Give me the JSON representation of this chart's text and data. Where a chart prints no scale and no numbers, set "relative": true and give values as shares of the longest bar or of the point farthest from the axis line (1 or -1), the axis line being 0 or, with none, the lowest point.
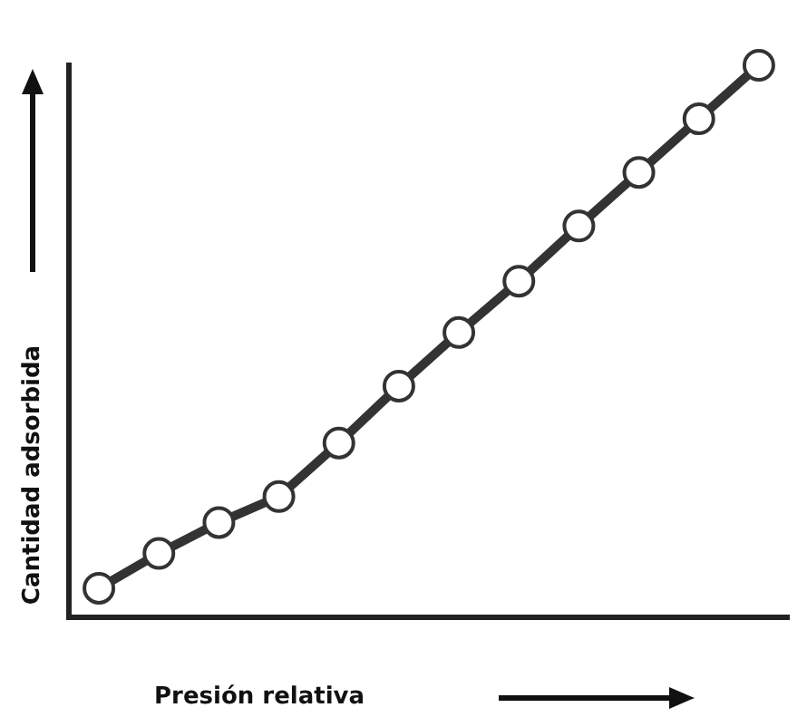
{
  "chart_data": {
    "type": "line",
    "xlabel": "Presión relativa",
    "ylabel": "Cantidad adsorbida",
    "relative": true,
    "categories": [
      null,
      null,
      null,
      null,
      null,
      null,
      null,
      null,
      null,
      null,
      null,
      null
    ],
    "series": [
      {
        "color": "#333333",
        "values": [
          0.053,
          0.116,
          0.172,
          0.219,
          0.316,
          0.419,
          0.516,
          0.609,
          0.709,
          0.806,
          0.903,
          1
        ]
      }
    ],
    "grid": false,
    "legend": false,
    "marker": "circle",
    "line_style": "solid"
  }
}
